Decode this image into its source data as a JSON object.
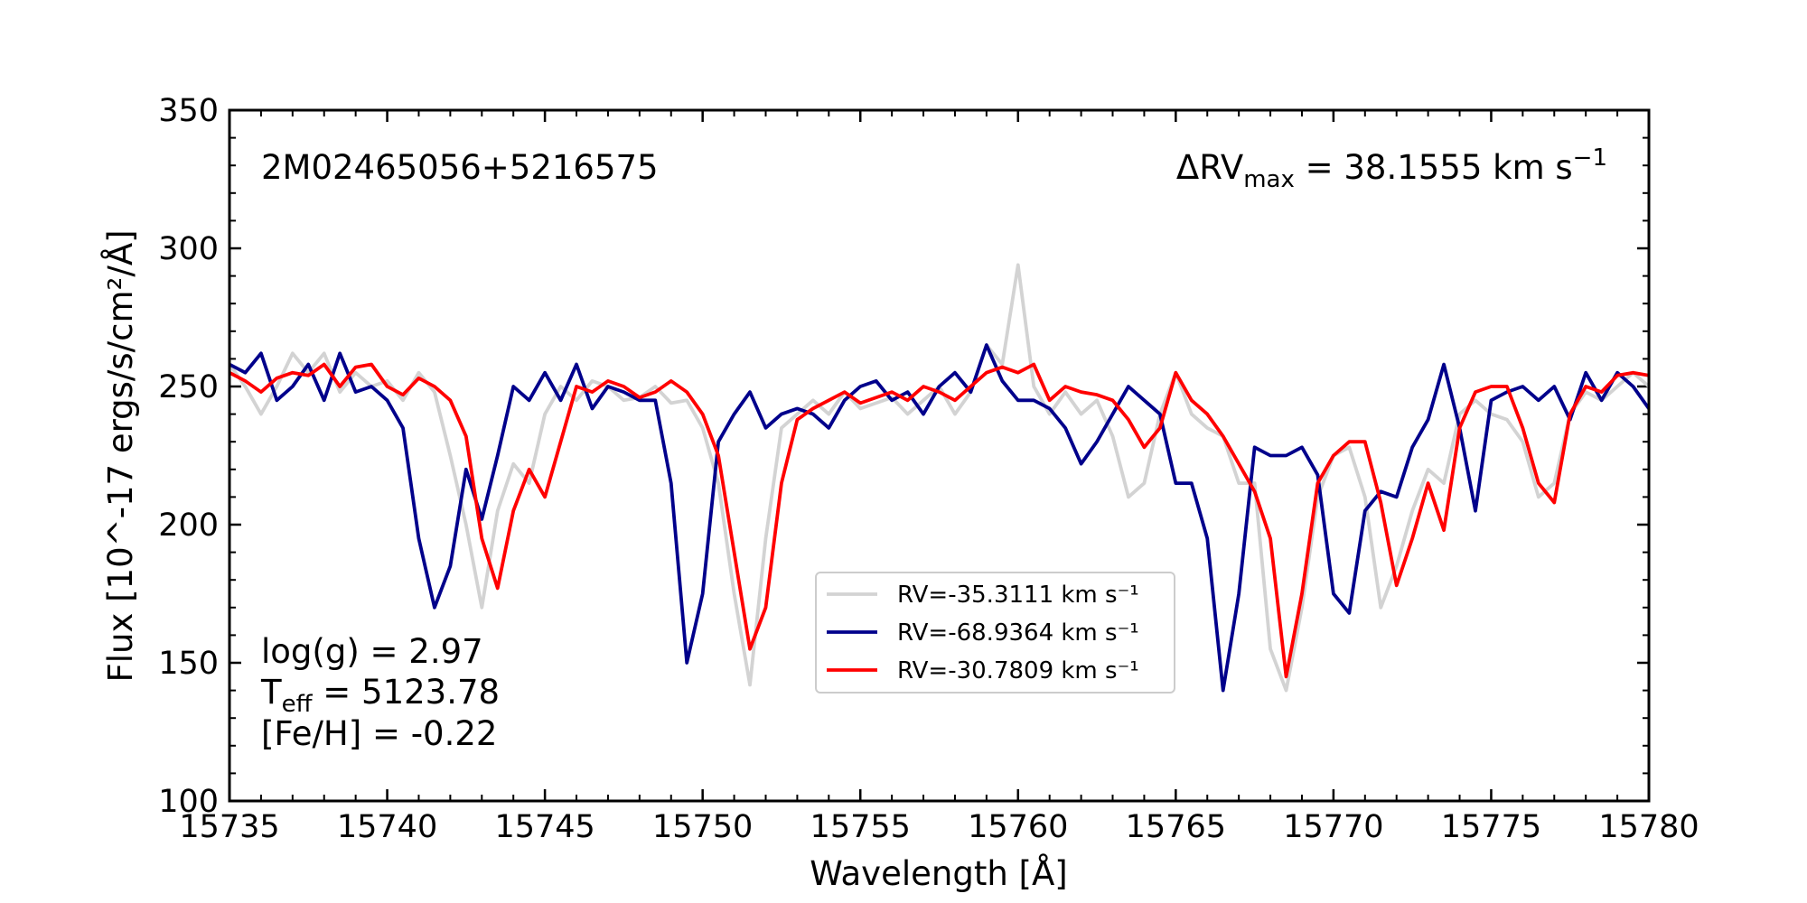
{
  "chart_data": {
    "type": "line",
    "xlabel": "Wavelength [Å]",
    "ylabel": "Flux [10^-17 ergs/s/cm²/Å]",
    "annotations": {
      "star_id": "2M02465056+5216575",
      "delta_rv": {
        "base": "ΔRV",
        "sub": "max",
        "rest": " = 38.1555 km s",
        "sup": "−1"
      },
      "logg": "log(g) = 2.97",
      "teff": {
        "base": "T",
        "sub": "eff",
        "rest": " = 5123.78"
      },
      "feh": "[Fe/H] = -0.22"
    },
    "x": [
      15735,
      15735.5,
      15736,
      15736.5,
      15737,
      15737.5,
      15738,
      15738.5,
      15739,
      15739.5,
      15740,
      15740.5,
      15741,
      15741.5,
      15742,
      15742.5,
      15743,
      15743.5,
      15744,
      15744.5,
      15745,
      15745.5,
      15746,
      15746.5,
      15747,
      15747.5,
      15748,
      15748.5,
      15749,
      15749.5,
      15750,
      15750.5,
      15751,
      15751.5,
      15752,
      15752.5,
      15753,
      15753.5,
      15754,
      15754.5,
      15755,
      15755.5,
      15756,
      15756.5,
      15757,
      15757.5,
      15758,
      15758.5,
      15759,
      15759.5,
      15760,
      15760.5,
      15761,
      15761.5,
      15762,
      15762.5,
      15763,
      15763.5,
      15764,
      15764.5,
      15765,
      15765.5,
      15766,
      15766.5,
      15767,
      15767.5,
      15768,
      15768.5,
      15769,
      15769.5,
      15770,
      15770.5,
      15771,
      15771.5,
      15772,
      15772.5,
      15773,
      15773.5,
      15774,
      15774.5,
      15775,
      15775.5,
      15776,
      15776.5,
      15777,
      15777.5,
      15778,
      15778.5,
      15779,
      15779.5,
      15780
    ],
    "series": [
      {
        "name": "RV=-35.3111 km s⁻¹",
        "color": "#d3d3d3",
        "values": [
          258,
          250,
          240,
          250,
          262,
          255,
          262,
          248,
          255,
          250,
          252,
          245,
          255,
          248,
          225,
          200,
          170,
          205,
          222,
          215,
          240,
          250,
          245,
          252,
          250,
          245,
          246,
          250,
          244,
          245,
          235,
          215,
          175,
          142,
          195,
          235,
          240,
          245,
          240,
          248,
          242,
          244,
          246,
          240,
          245,
          250,
          240,
          248,
          265,
          258,
          294,
          250,
          240,
          248,
          240,
          245,
          232,
          210,
          215,
          240,
          255,
          240,
          235,
          232,
          215,
          215,
          155,
          140,
          170,
          210,
          225,
          228,
          210,
          170,
          185,
          205,
          220,
          215,
          240,
          245,
          240,
          238,
          230,
          210,
          215,
          240,
          248,
          245,
          250,
          255,
          250
        ]
      },
      {
        "name": "RV=-68.9364 km s⁻¹",
        "color": "#00008b",
        "values": [
          258,
          255,
          262,
          245,
          250,
          258,
          245,
          262,
          248,
          250,
          245,
          235,
          195,
          170,
          185,
          220,
          202,
          225,
          250,
          245,
          255,
          245,
          258,
          242,
          250,
          248,
          245,
          245,
          215,
          150,
          175,
          230,
          240,
          248,
          235,
          240,
          242,
          240,
          235,
          245,
          250,
          252,
          245,
          248,
          240,
          250,
          255,
          248,
          265,
          252,
          245,
          245,
          242,
          235,
          222,
          230,
          240,
          250,
          245,
          240,
          215,
          215,
          195,
          140,
          175,
          228,
          225,
          225,
          228,
          218,
          175,
          168,
          205,
          212,
          210,
          228,
          238,
          258,
          235,
          205,
          245,
          248,
          250,
          245,
          250,
          238,
          255,
          245,
          255,
          250,
          242
        ]
      },
      {
        "name": "RV=-30.7809 km s⁻¹",
        "color": "#ff0000",
        "values": [
          255,
          252,
          248,
          253,
          255,
          254,
          258,
          250,
          257,
          258,
          250,
          247,
          253,
          250,
          245,
          232,
          195,
          177,
          205,
          220,
          210,
          230,
          250,
          248,
          252,
          250,
          246,
          248,
          252,
          248,
          240,
          225,
          190,
          155,
          170,
          215,
          238,
          242,
          245,
          248,
          244,
          246,
          248,
          245,
          250,
          248,
          245,
          250,
          255,
          257,
          255,
          258,
          245,
          250,
          248,
          247,
          245,
          238,
          228,
          235,
          255,
          245,
          240,
          232,
          222,
          212,
          195,
          145,
          175,
          215,
          225,
          230,
          230,
          208,
          178,
          195,
          215,
          198,
          235,
          248,
          250,
          250,
          235,
          215,
          208,
          240,
          250,
          248,
          254,
          255,
          254
        ]
      }
    ],
    "xlim": [
      15735,
      15780
    ],
    "ylim": [
      100,
      350
    ],
    "xticks": [
      15735,
      15740,
      15745,
      15750,
      15755,
      15760,
      15765,
      15770,
      15775,
      15780
    ],
    "yticks": [
      100,
      150,
      200,
      250,
      300,
      350
    ],
    "xminorticks": [
      15735,
      15736,
      15737,
      15738,
      15739,
      15740,
      15741,
      15742,
      15743,
      15744,
      15745,
      15746,
      15747,
      15748,
      15749,
      15750,
      15751,
      15752,
      15753,
      15754,
      15755,
      15756,
      15757,
      15758,
      15759,
      15760,
      15761,
      15762,
      15763,
      15764,
      15765,
      15766,
      15767,
      15768,
      15769,
      15770,
      15771,
      15772,
      15773,
      15774,
      15775,
      15776,
      15777,
      15778,
      15779,
      15780
    ],
    "yminorticks": [
      100,
      110,
      120,
      130,
      140,
      150,
      160,
      170,
      180,
      190,
      200,
      210,
      220,
      230,
      240,
      250,
      260,
      270,
      280,
      290,
      300,
      310,
      320,
      330,
      340,
      350
    ],
    "grid": false,
    "legend_loc": "lower center"
  }
}
